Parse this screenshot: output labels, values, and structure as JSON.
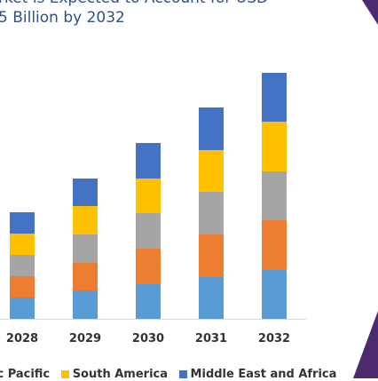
{
  "chart_data": {
    "type": "bar",
    "stacked": true,
    "title": "rket is Expected to Account for USD",
    "subtitle": "5 Billion by 2032",
    "xlabel": "",
    "ylabel": "",
    "categories": [
      "2028",
      "2029",
      "2030",
      "2031",
      "2032"
    ],
    "series": [
      {
        "name": "",
        "color": "#5b9bd5",
        "values": [
          24,
          32,
          39,
          47,
          55
        ]
      },
      {
        "name": "",
        "color": "#ed7d31",
        "values": [
          24,
          31,
          40,
          48,
          56
        ]
      },
      {
        "name": "",
        "color": "#a5a5a5",
        "values": [
          24,
          32,
          40,
          48,
          55
        ]
      },
      {
        "name": "South America",
        "color": "#ffc000",
        "values": [
          24,
          32,
          39,
          47,
          56
        ]
      },
      {
        "name": "Middle East and Africa",
        "color": "#4472c4",
        "values": [
          24,
          31,
          40,
          48,
          55
        ]
      }
    ],
    "legend": {
      "position": "bottom",
      "partial_first_label": "ic Pacific"
    },
    "grid": false
  },
  "decoration": {
    "corner_color": "#4b2a6e"
  }
}
